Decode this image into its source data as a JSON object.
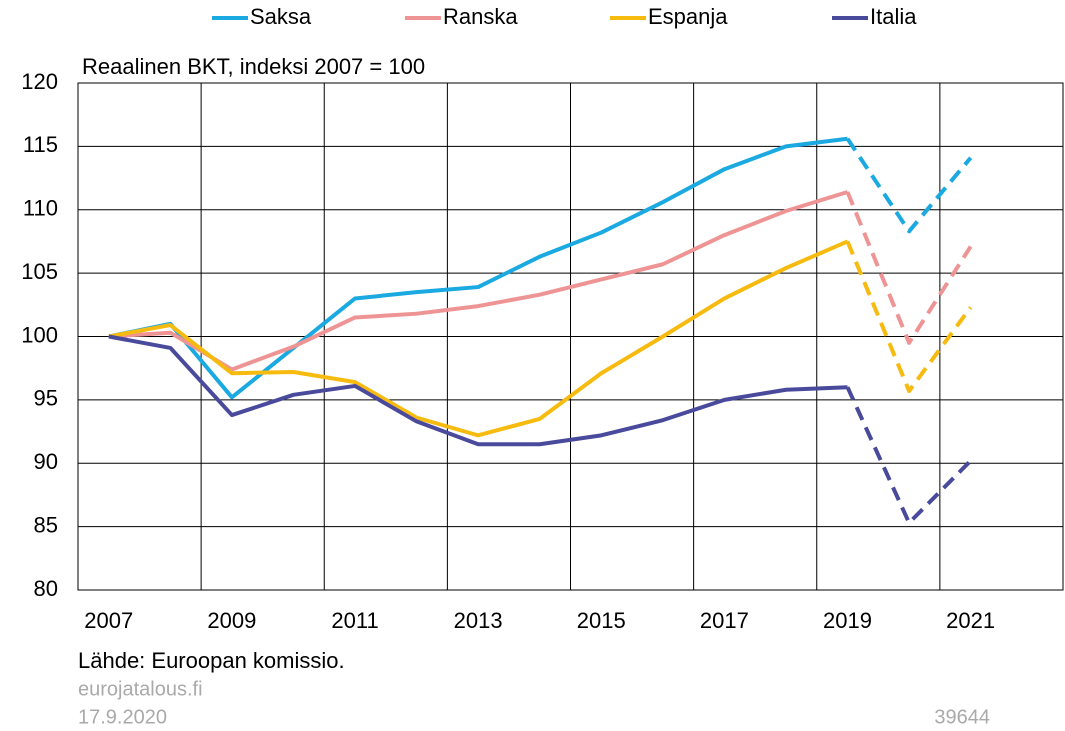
{
  "chart_data": {
    "type": "line",
    "title": "Reaalinen BKT, indeksi 2007 = 100",
    "source": "Lähde: Euroopan komissio.",
    "site": "eurojatalous.fi",
    "date": "17.9.2020",
    "id": "39644",
    "categories": [
      "2007",
      null,
      "2009",
      null,
      "2011",
      null,
      "2013",
      null,
      "2015",
      null,
      "2017",
      null,
      "2019",
      null,
      "2021",
      null
    ],
    "dashed_from_category": "2019",
    "ylim": [
      80,
      120
    ],
    "yticks": [
      80,
      85,
      90,
      95,
      100,
      105,
      110,
      115,
      120
    ],
    "grid": true,
    "legend": "top",
    "series": [
      {
        "name": "Saksa",
        "color": "#1aa9e0",
        "values": [
          100,
          101,
          95.2,
          99.1,
          103.0,
          103.5,
          103.9,
          106.3,
          108.2,
          110.6,
          113.2,
          115.0,
          115.6,
          108.3,
          114.1,
          null
        ]
      },
      {
        "name": "Ranska",
        "color": "#ee9494",
        "values": [
          100,
          100.3,
          97.4,
          99.2,
          101.5,
          101.8,
          102.4,
          103.3,
          104.5,
          105.7,
          108.0,
          109.9,
          111.4,
          99.5,
          107.1,
          null
        ]
      },
      {
        "name": "Espanja",
        "color": "#f7bb10",
        "values": [
          100,
          100.9,
          97.1,
          97.2,
          96.4,
          93.6,
          92.2,
          93.5,
          97.1,
          100.0,
          103.0,
          105.4,
          107.5,
          95.7,
          102.3,
          null
        ]
      },
      {
        "name": "Italia",
        "color": "#4a4a9c",
        "values": [
          100,
          99.1,
          93.8,
          95.4,
          96.1,
          93.3,
          91.5,
          91.5,
          92.2,
          93.4,
          95.0,
          95.8,
          96.0,
          85.3,
          90.2,
          null
        ]
      }
    ]
  }
}
